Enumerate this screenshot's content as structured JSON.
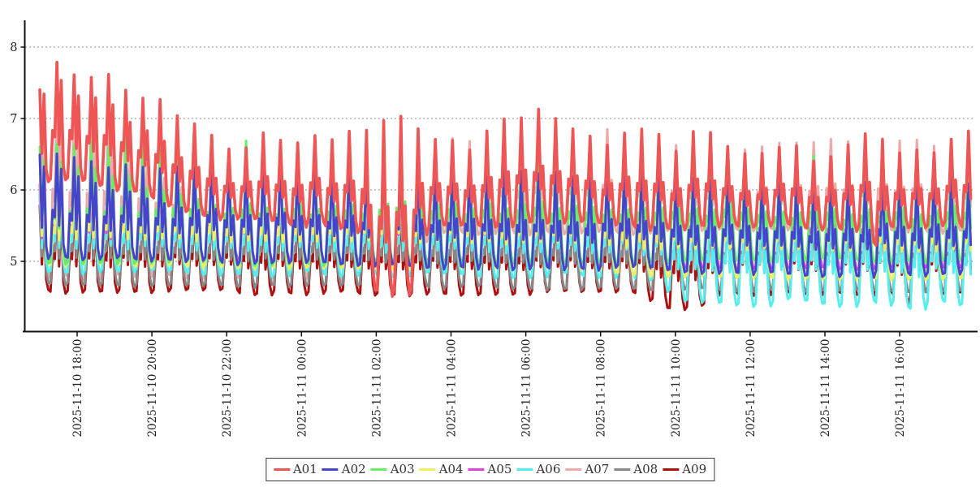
{
  "chart_data": {
    "type": "line",
    "title": "",
    "xlabel": "",
    "ylabel": "",
    "grid": "horizontal-dotted",
    "legend_position": "bottom-center",
    "y_axis": {
      "ticks": [
        5,
        6,
        7,
        8
      ],
      "lim": [
        4.0,
        8.4
      ]
    },
    "x_axis": {
      "tick_labels": [
        "2025-11-10 18:00",
        "2025-11-10 20:00",
        "2025-11-10 22:00",
        "2025-11-11 00:00",
        "2025-11-11 02:00",
        "2025-11-11 04:00",
        "2025-11-11 06:00",
        "2025-11-11 08:00",
        "2025-11-11 10:00",
        "2025-11-11 12:00",
        "2025-11-11 14:00",
        "2025-11-11 16:00"
      ],
      "tick_hours": [
        1,
        3,
        5,
        7,
        9,
        11,
        13,
        15,
        17,
        19,
        21,
        23
      ]
    },
    "duration_hours": 24.9,
    "period_hours": 0.46,
    "phase_offset": 0.375,
    "waveform": [
      [
        0,
        0.02
      ],
      [
        0.125,
        0.45
      ],
      [
        0.25,
        0.38
      ],
      [
        0.375,
        1.0
      ],
      [
        0.5,
        0.3
      ],
      [
        0.625,
        "bump"
      ],
      [
        0.75,
        0.12
      ],
      [
        0.875,
        0.0
      ]
    ],
    "bump_envelope": [
      [
        0,
        0.9
      ],
      [
        1,
        0.82
      ],
      [
        2,
        0.75
      ],
      [
        3,
        0.65
      ],
      [
        4,
        0.55
      ],
      [
        5,
        0.5
      ],
      [
        24.9,
        0.5
      ]
    ],
    "jitter_seed": 11,
    "draw_order": [
      "A07",
      "A09",
      "A08",
      "A06",
      "A05",
      "A04",
      "A03",
      "A02",
      "A01"
    ],
    "series": [
      {
        "name": "A01",
        "color": "#ee5555",
        "width": 3.6,
        "peak_jitter": 0.09,
        "trough_jitter": 0.05,
        "peaks": [
          [
            0,
            7.4
          ],
          [
            0.5,
            7.8
          ],
          [
            1,
            7.5
          ],
          [
            1.5,
            7.7
          ],
          [
            2,
            7.55
          ],
          [
            2.5,
            7.3
          ],
          [
            3,
            7.3
          ],
          [
            3.5,
            7.15
          ],
          [
            4,
            7.0
          ],
          [
            4.5,
            6.8
          ],
          [
            5,
            6.55
          ],
          [
            5.5,
            6.6
          ],
          [
            6,
            6.75
          ],
          [
            7,
            6.7
          ],
          [
            8,
            6.75
          ],
          [
            9,
            6.85
          ],
          [
            9.5,
            7.0
          ],
          [
            10.5,
            6.8
          ],
          [
            11.5,
            6.6
          ],
          [
            12.5,
            7.0
          ],
          [
            13.5,
            7.05
          ],
          [
            14.5,
            6.9
          ],
          [
            15,
            6.6
          ],
          [
            16,
            6.95
          ],
          [
            17,
            6.6
          ],
          [
            17.5,
            6.85
          ],
          [
            18.5,
            6.6
          ],
          [
            19,
            6.45
          ],
          [
            20,
            6.75
          ],
          [
            21,
            6.35
          ],
          [
            22,
            6.8
          ],
          [
            23,
            6.5
          ],
          [
            24,
            6.6
          ],
          [
            24.9,
            6.8
          ]
        ],
        "troughs": [
          [
            0,
            6.1
          ],
          [
            1,
            6.15
          ],
          [
            2,
            6.0
          ],
          [
            3,
            5.9
          ],
          [
            4,
            5.7
          ],
          [
            5,
            5.6
          ],
          [
            6,
            5.55
          ],
          [
            8,
            5.5
          ],
          [
            8.6,
            5.4
          ],
          [
            8.9,
            4.6
          ],
          [
            9.9,
            4.5
          ],
          [
            10.2,
            5.4
          ],
          [
            11,
            5.5
          ],
          [
            14,
            5.55
          ],
          [
            17,
            5.45
          ],
          [
            20,
            5.5
          ],
          [
            22.2,
            5.45
          ],
          [
            22.45,
            5.0
          ],
          [
            22.7,
            5.45
          ],
          [
            24.9,
            5.5
          ]
        ]
      },
      {
        "name": "A02",
        "color": "#4444cc",
        "width": 3.0,
        "peak_jitter": 0.06,
        "trough_jitter": 0.04,
        "peaks": [
          [
            0,
            6.5
          ],
          [
            1,
            6.45
          ],
          [
            2,
            6.35
          ],
          [
            6,
            6.35
          ],
          [
            10,
            6.3
          ],
          [
            14,
            6.25
          ],
          [
            16,
            6.2
          ],
          [
            18,
            6.15
          ],
          [
            21,
            6.1
          ],
          [
            24,
            6.2
          ],
          [
            24.9,
            6.1
          ]
        ],
        "troughs": [
          [
            0,
            5.05
          ],
          [
            4,
            5.0
          ],
          [
            8,
            4.95
          ],
          [
            12,
            4.9
          ],
          [
            16,
            4.9
          ],
          [
            18,
            4.82
          ],
          [
            22,
            4.8
          ],
          [
            24.9,
            4.85
          ]
        ]
      },
      {
        "name": "A03",
        "color": "#66ee66",
        "width": 3.0,
        "peak_jitter": 0.1,
        "trough_jitter": 0.03,
        "peaks": [
          [
            0,
            6.65
          ],
          [
            4,
            6.6
          ],
          [
            8,
            6.58
          ],
          [
            12,
            6.6
          ],
          [
            16,
            6.55
          ],
          [
            17.5,
            6.4
          ],
          [
            18.5,
            6.55
          ],
          [
            19.5,
            6.35
          ],
          [
            20.5,
            6.45
          ],
          [
            21.5,
            6.35
          ],
          [
            22.5,
            6.5
          ],
          [
            23.5,
            6.4
          ],
          [
            24.9,
            6.6
          ]
        ],
        "troughs": [
          [
            0,
            4.95
          ],
          [
            4,
            4.98
          ],
          [
            8,
            4.95
          ],
          [
            12,
            4.98
          ],
          [
            16,
            5.0
          ],
          [
            20,
            5.02
          ],
          [
            24.9,
            5.0
          ]
        ]
      },
      {
        "name": "A04",
        "color": "#eeee66",
        "width": 3.0,
        "peak_jitter": 0.06,
        "trough_jitter": 0.03,
        "peaks": [
          [
            0,
            6.2
          ],
          [
            8,
            6.15
          ],
          [
            16,
            6.12
          ],
          [
            24.9,
            6.1
          ]
        ],
        "troughs": [
          [
            0,
            4.95
          ],
          [
            8,
            4.9
          ],
          [
            14.5,
            4.88
          ],
          [
            16.5,
            4.78
          ],
          [
            20,
            4.76
          ],
          [
            24.9,
            4.77
          ]
        ]
      },
      {
        "name": "A05",
        "color": "#dd44dd",
        "width": 3.0,
        "peak_jitter": 0.07,
        "trough_jitter": 0.03,
        "peaks": [
          [
            0,
            6.1
          ],
          [
            8,
            6.05
          ],
          [
            16,
            6.15
          ],
          [
            24.9,
            6.15
          ]
        ],
        "troughs": [
          [
            0,
            5.02
          ],
          [
            8,
            5.0
          ],
          [
            14.5,
            4.96
          ],
          [
            16.5,
            4.9
          ],
          [
            20,
            4.9
          ],
          [
            24.9,
            4.9
          ]
        ]
      },
      {
        "name": "A06",
        "color": "#55eeee",
        "width": 3.0,
        "peak_jitter": 0.05,
        "trough_jitter": 0.05,
        "peaks": [
          [
            0,
            6.0
          ],
          [
            8,
            5.95
          ],
          [
            16,
            5.95
          ],
          [
            24.9,
            5.9
          ]
        ],
        "troughs": [
          [
            0,
            4.85
          ],
          [
            8,
            4.82
          ],
          [
            14.5,
            4.8
          ],
          [
            16.6,
            4.78
          ],
          [
            17,
            4.45
          ],
          [
            18,
            4.42
          ],
          [
            19.5,
            4.36
          ],
          [
            20,
            4.44
          ],
          [
            21,
            4.4
          ],
          [
            22,
            4.36
          ],
          [
            22.5,
            4.44
          ],
          [
            23.5,
            4.32
          ],
          [
            24,
            4.44
          ],
          [
            24.9,
            4.4
          ]
        ]
      },
      {
        "name": "A07",
        "color": "#eeaaaa",
        "width": 3.0,
        "peak_jitter": 0.06,
        "trough_jitter": 0.04,
        "peaks": [
          [
            0,
            7.3
          ],
          [
            0.5,
            7.6
          ],
          [
            1,
            7.4
          ],
          [
            2,
            7.35
          ],
          [
            3,
            7.1
          ],
          [
            4,
            6.9
          ],
          [
            5,
            6.5
          ],
          [
            6,
            6.65
          ],
          [
            8,
            6.65
          ],
          [
            10,
            6.7
          ],
          [
            12,
            6.7
          ],
          [
            14,
            6.8
          ],
          [
            16,
            6.8
          ],
          [
            18,
            6.5
          ],
          [
            20,
            6.65
          ],
          [
            22,
            6.7
          ],
          [
            24.9,
            6.6
          ]
        ],
        "troughs": [
          [
            0,
            4.78
          ],
          [
            4,
            4.78
          ],
          [
            7.9,
            4.8
          ],
          [
            8.3,
            4.6
          ],
          [
            9.9,
            4.5
          ],
          [
            10.3,
            5.3
          ],
          [
            11,
            5.4
          ],
          [
            16,
            5.4
          ],
          [
            20,
            5.45
          ],
          [
            24.9,
            5.4
          ]
        ]
      },
      {
        "name": "A08",
        "color": "#888888",
        "width": 3.0,
        "peak_jitter": 0.04,
        "trough_jitter": 0.03,
        "peaks": [
          [
            0,
            5.9
          ],
          [
            8,
            5.85
          ],
          [
            16,
            5.8
          ],
          [
            24.9,
            5.75
          ]
        ],
        "troughs": [
          [
            0,
            4.68
          ],
          [
            6,
            4.65
          ],
          [
            12,
            4.63
          ],
          [
            16,
            4.6
          ],
          [
            20,
            4.6
          ],
          [
            24.9,
            4.58
          ]
        ]
      },
      {
        "name": "A09",
        "color": "#aa1111",
        "width": 3.0,
        "peak_jitter": 0.04,
        "trough_jitter": 0.04,
        "peaks": [
          [
            0,
            5.8
          ],
          [
            8,
            5.75
          ],
          [
            16,
            5.7
          ],
          [
            24.9,
            5.65
          ]
        ],
        "troughs": [
          [
            0,
            4.58
          ],
          [
            8,
            4.55
          ],
          [
            16,
            4.55
          ],
          [
            16.8,
            4.34
          ],
          [
            17.6,
            4.34
          ],
          [
            18.1,
            4.55
          ],
          [
            22.9,
            4.55
          ],
          [
            23.2,
            4.42
          ],
          [
            23.5,
            4.55
          ],
          [
            24.9,
            4.55
          ]
        ]
      }
    ]
  }
}
